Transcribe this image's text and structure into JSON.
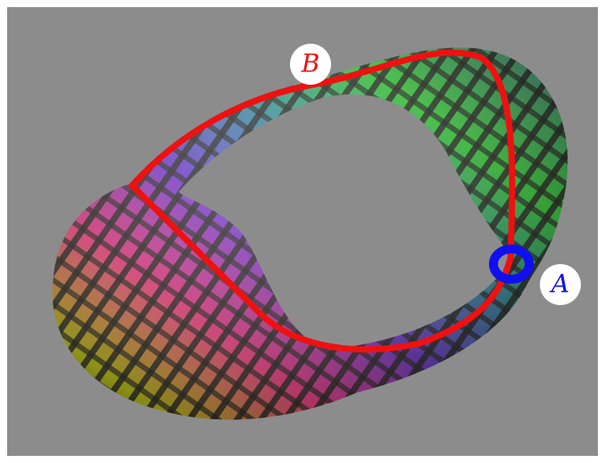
{
  "points": [
    {
      "label": "B"
    },
    {
      "label": "A"
    }
  ]
}
